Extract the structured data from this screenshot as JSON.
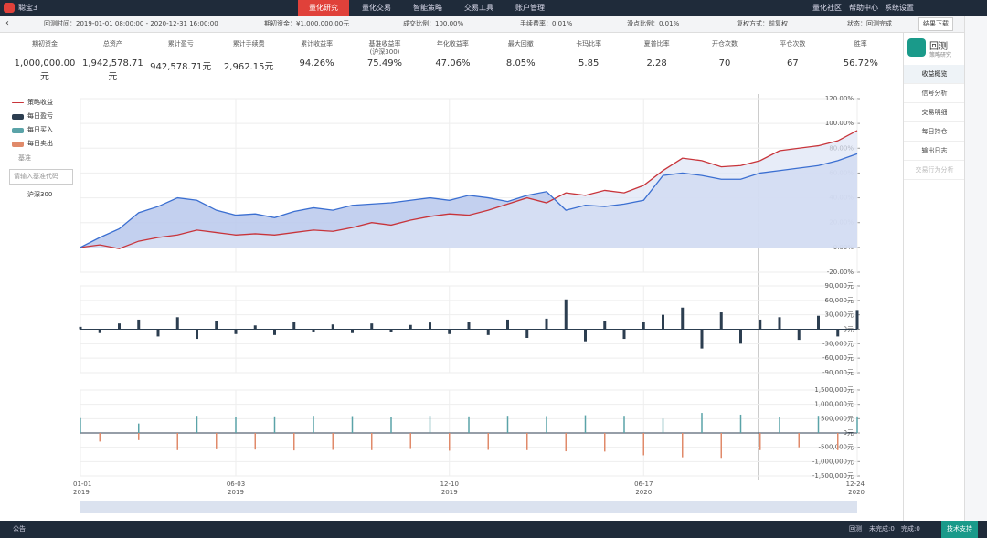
{
  "app": {
    "logo": "聪宝3",
    "nav": [
      "量化研究",
      "量化交易",
      "智能策略",
      "交易工具",
      "账户管理"
    ],
    "nav_right": [
      "量化社区",
      "帮助中心",
      "系统设置"
    ]
  },
  "info_bar": [
    "回测时间：2019-01-01 08:00:00 - 2020-12-31 16:00:00",
    "期初资金：¥1,000,000.00元",
    "成交比例：100.00%",
    "手续费率：0.01%",
    "滑点比例：0.01%",
    "复权方式：前复权",
    "状态：回测完成"
  ],
  "download": "结果下载",
  "stats": [
    {
      "label": "期初资金",
      "value": "1,000,000.00元"
    },
    {
      "label": "总资产",
      "value": "1,942,578.71元"
    },
    {
      "label": "累计盈亏",
      "value": "942,578.71元"
    },
    {
      "label": "累计手续费",
      "value": "2,962.15元"
    },
    {
      "label": "累计收益率",
      "value": "94.26%"
    },
    {
      "label": "基准收益率\n(沪深300)",
      "value": "75.49%"
    },
    {
      "label": "年化收益率",
      "value": "47.06%"
    },
    {
      "label": "最大回撤",
      "value": "8.05%"
    },
    {
      "label": "卡玛比率",
      "value": "5.85"
    },
    {
      "label": "夏普比率",
      "value": "2.28"
    },
    {
      "label": "开仓次数",
      "value": "70"
    },
    {
      "label": "平仓次数",
      "value": "67"
    },
    {
      "label": "胜率",
      "value": "56.72%"
    }
  ],
  "legend": {
    "benchmark_heading": "基准",
    "input_placeholder": "请输入基准代码"
  },
  "sidebar": {
    "title": "回测",
    "subtitle": "策略研究",
    "items": [
      "收益概览",
      "信号分析",
      "交易明细",
      "每日持仓",
      "输出日志",
      "交易行为分析"
    ]
  },
  "footer": {
    "notice": "公告",
    "items": [
      "回测",
      "未完成:0",
      "完成:0"
    ],
    "support": "技术支持"
  },
  "chart_data": [
    {
      "type": "line",
      "series": [
        {
          "name": "策略收益",
          "color": "#c8343a",
          "values": [
            0,
            2,
            -1,
            5,
            8,
            10,
            14,
            12,
            10,
            11,
            10,
            12,
            14,
            13,
            16,
            20,
            18,
            22,
            25,
            27,
            26,
            30,
            35,
            40,
            36,
            44,
            42,
            46,
            44,
            50,
            62,
            72,
            70,
            65,
            66,
            70,
            78,
            80,
            82,
            86,
            94.26
          ]
        },
        {
          "name": "沪深300",
          "color": "#3b6fd1",
          "values": [
            0,
            8,
            15,
            28,
            33,
            40,
            38,
            30,
            26,
            27,
            24,
            29,
            32,
            30,
            34,
            35,
            36,
            38,
            40,
            38,
            42,
            40,
            37,
            42,
            45,
            30,
            34,
            33,
            35,
            38,
            58,
            60,
            58,
            55,
            55,
            60,
            62,
            64,
            66,
            70,
            75.49
          ]
        }
      ],
      "ylim": [
        -20,
        120
      ],
      "yticks": [
        {
          "value": 120,
          "label": "120.00%"
        },
        {
          "value": 100,
          "label": "100.00%"
        },
        {
          "value": 80,
          "label": "80.00%"
        },
        {
          "value": 60,
          "label": "60.00%"
        },
        {
          "value": 40,
          "label": "40.00%"
        },
        {
          "value": 20,
          "label": "20.00%"
        },
        {
          "value": 0,
          "label": "0.00%"
        },
        {
          "value": -20,
          "label": "-20.00%"
        }
      ],
      "grid": true
    },
    {
      "type": "bar",
      "series": [
        {
          "name": "每日盈亏",
          "color": "#2c3e50",
          "values": [
            5000,
            -8000,
            12000,
            20000,
            -15000,
            25000,
            -20000,
            18000,
            -10000,
            8000,
            -12000,
            15000,
            -5000,
            10000,
            -8000,
            12000,
            -6000,
            9000,
            14000,
            -10000,
            16000,
            -12000,
            20000,
            -18000,
            22000,
            62000,
            -25000,
            18000,
            -20000,
            15000,
            30000,
            45000,
            -40000,
            35000,
            -30000,
            20000,
            25000,
            -22000,
            28000,
            -15000,
            40000
          ]
        }
      ],
      "ylim": [
        -90000,
        90000
      ],
      "yticks": [
        {
          "value": 90000,
          "label": "90,000元"
        },
        {
          "value": 60000,
          "label": "60,000元"
        },
        {
          "value": 30000,
          "label": "30,000元"
        },
        {
          "value": 0,
          "label": "0元"
        },
        {
          "value": -30000,
          "label": "-30,000元"
        },
        {
          "value": -60000,
          "label": "-60,000元"
        },
        {
          "value": -90000,
          "label": "-90,000元"
        }
      ],
      "grid": true
    },
    {
      "type": "bar",
      "categories": [
        "01-01",
        null,
        null,
        null,
        null,
        null,
        null,
        null,
        "06-03",
        null,
        null,
        null,
        null,
        null,
        null,
        null,
        null,
        null,
        null,
        "12-10",
        null,
        null,
        null,
        null,
        null,
        null,
        null,
        null,
        null,
        "06-17",
        null,
        null,
        null,
        null,
        null,
        null,
        null,
        null,
        null,
        null,
        "12-24"
      ],
      "category_years": [
        "2019",
        null,
        null,
        null,
        null,
        null,
        null,
        null,
        "2019",
        null,
        null,
        null,
        null,
        null,
        null,
        null,
        null,
        null,
        null,
        "2019",
        null,
        null,
        null,
        null,
        null,
        null,
        null,
        null,
        null,
        "2020",
        null,
        null,
        null,
        null,
        null,
        null,
        null,
        null,
        null,
        null,
        "2020"
      ],
      "series": [
        {
          "name": "每日买入",
          "color": "#5aa3a8",
          "values": [
            520000,
            null,
            null,
            330000,
            null,
            null,
            600000,
            null,
            550000,
            null,
            580000,
            null,
            600000,
            null,
            590000,
            null,
            570000,
            null,
            600000,
            null,
            580000,
            null,
            600000,
            null,
            590000,
            null,
            620000,
            null,
            600000,
            null,
            500000,
            null,
            700000,
            null,
            640000,
            null,
            550000,
            null,
            600000,
            null,
            580000
          ]
        },
        {
          "name": "每日卖出",
          "color": "#e08a6a",
          "values": [
            null,
            -300000,
            null,
            -250000,
            null,
            -600000,
            null,
            -570000,
            null,
            -580000,
            null,
            -610000,
            null,
            -590000,
            null,
            -600000,
            null,
            -560000,
            null,
            -620000,
            null,
            -590000,
            null,
            -600000,
            null,
            -640000,
            null,
            -650000,
            null,
            -780000,
            null,
            -850000,
            null,
            -870000,
            null,
            -600000,
            null,
            -500000,
            null,
            -600000,
            null
          ]
        }
      ],
      "ylim": [
        -1500000,
        1500000
      ],
      "yticks": [
        {
          "value": 1500000,
          "label": "1,500,000元"
        },
        {
          "value": 1000000,
          "label": "1,000,000元"
        },
        {
          "value": 500000,
          "label": "500,000元"
        },
        {
          "value": 0,
          "label": "0元"
        },
        {
          "value": -500000,
          "label": "-500,000元"
        },
        {
          "value": -1000000,
          "label": "-1,000,000元"
        },
        {
          "value": -1500000,
          "label": "-1,500,000元"
        }
      ],
      "grid": true
    }
  ]
}
